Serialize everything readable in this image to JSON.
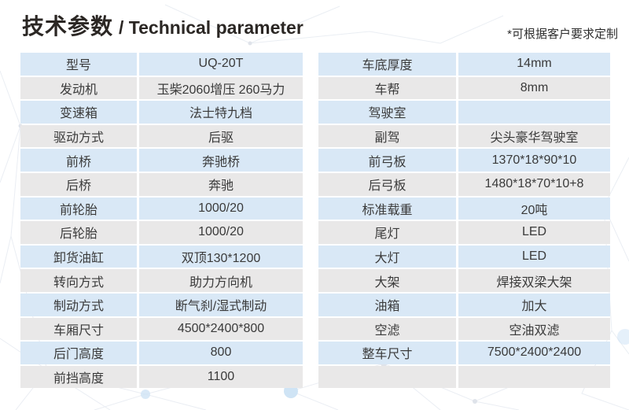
{
  "header": {
    "title_zh": "技术参数",
    "title_en": "/ Technical parameter",
    "note": "*可根据客户要求定制"
  },
  "colors": {
    "row_blue": "#d9e8f6",
    "row_gray": "#e9e8e8",
    "text": "#3a3a3a",
    "node_blue": "#cfe4f5",
    "line_gray": "#e8ecf2"
  },
  "tables": {
    "left": {
      "rows": [
        {
          "label": "型号",
          "value": "UQ-20T"
        },
        {
          "label": "发动机",
          "value": "玉柴2060增压 260马力"
        },
        {
          "label": "变速箱",
          "value": "法士特九档"
        },
        {
          "label": "驱动方式",
          "value": "后驱"
        },
        {
          "label": "前桥",
          "value": "奔驰桥"
        },
        {
          "label": "后桥",
          "value": "奔驰"
        },
        {
          "label": "前轮胎",
          "value": "1000/20"
        },
        {
          "label": "后轮胎",
          "value": "1000/20"
        },
        {
          "label": "卸货油缸",
          "value": "双顶130*1200"
        },
        {
          "label": "转向方式",
          "value": "助力方向机"
        },
        {
          "label": "制动方式",
          "value": "断气刹/湿式制动"
        },
        {
          "label": "车厢尺寸",
          "value": "4500*2400*800"
        },
        {
          "label": "后门高度",
          "value": "800"
        },
        {
          "label": "前挡高度",
          "value": "1100"
        }
      ]
    },
    "right": {
      "rows": [
        {
          "label": "车底厚度",
          "value": "14mm"
        },
        {
          "label": "车帮",
          "value": "8mm"
        },
        {
          "label": "驾驶室",
          "value": ""
        },
        {
          "label": "副驾",
          "value": "尖头豪华驾驶室"
        },
        {
          "label": "前弓板",
          "value": "1370*18*90*10"
        },
        {
          "label": "后弓板",
          "value": "1480*18*70*10+8"
        },
        {
          "label": "标准载重",
          "value": "20吨"
        },
        {
          "label": "尾灯",
          "value": "LED"
        },
        {
          "label": "大灯",
          "value": "LED"
        },
        {
          "label": "大架",
          "value": "焊接双梁大架"
        },
        {
          "label": "油箱",
          "value": "加大"
        },
        {
          "label": "空滤",
          "value": "空油双滤"
        },
        {
          "label": "整车尺寸",
          "value": "7500*2400*2400"
        },
        {
          "label": "",
          "value": ""
        }
      ]
    }
  }
}
